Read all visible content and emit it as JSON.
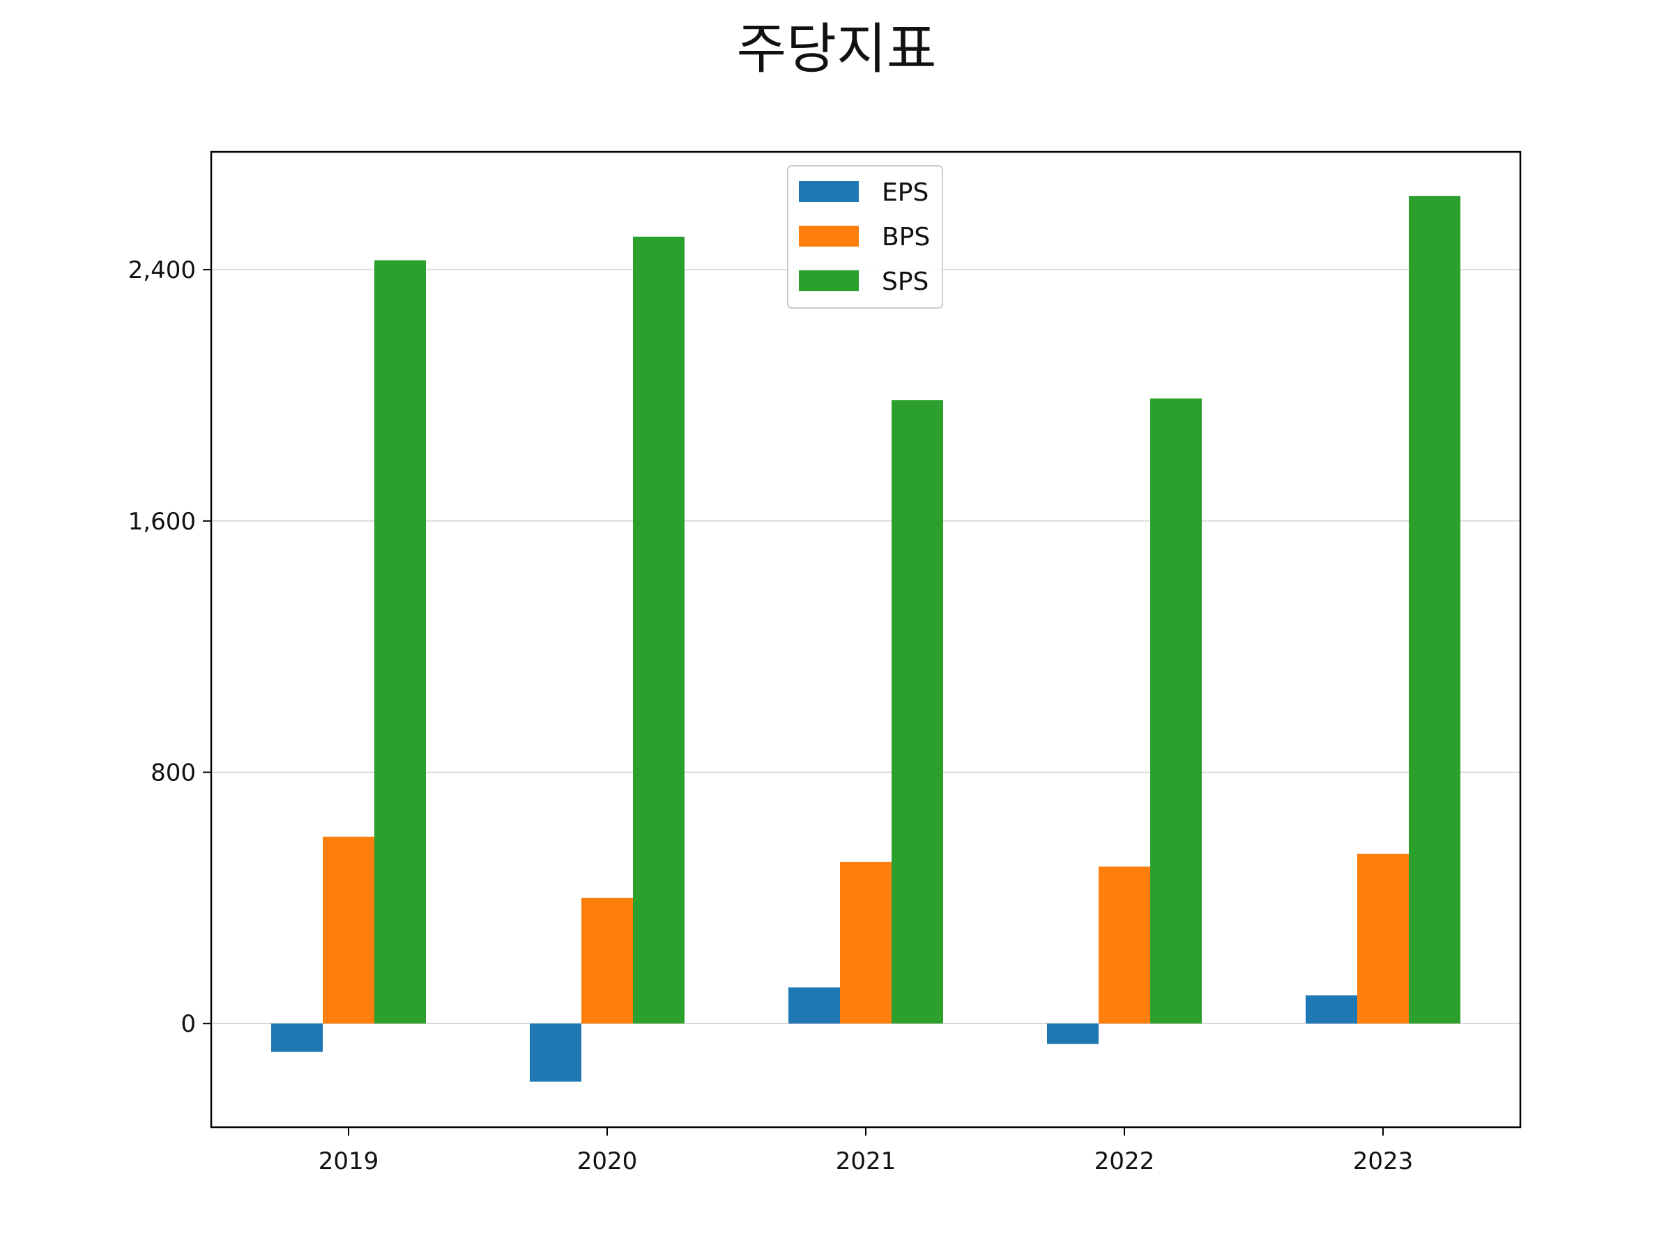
{
  "chart_data": {
    "type": "bar",
    "title": "주당지표",
    "xlabel": "",
    "ylabel": "",
    "categories": [
      "2019",
      "2020",
      "2021",
      "2022",
      "2023"
    ],
    "series": [
      {
        "name": "EPS",
        "color": "#1f77b4",
        "values": [
          -90,
          -185,
          115,
          -65,
          90
        ]
      },
      {
        "name": "BPS",
        "color": "#ff7f0e",
        "values": [
          595,
          400,
          515,
          500,
          540
        ]
      },
      {
        "name": "SPS",
        "color": "#2ca02c",
        "values": [
          2430,
          2505,
          1985,
          1990,
          2635
        ]
      }
    ],
    "ylim": [
      -330,
      2775
    ],
    "yticks": [
      0,
      800,
      1600,
      2400
    ],
    "ytick_labels": [
      "0",
      "800",
      "1,600",
      "2,400"
    ],
    "grid": "horizontal",
    "legend_position": "top-center"
  }
}
